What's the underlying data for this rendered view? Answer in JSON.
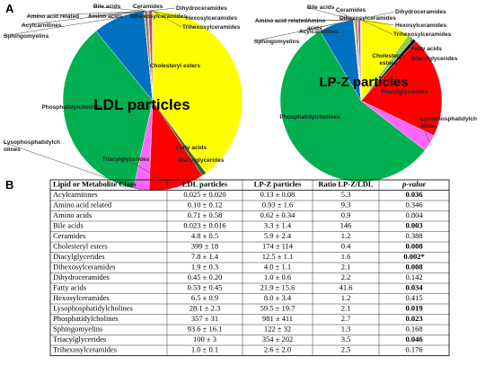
{
  "panels": [
    "A",
    "B"
  ],
  "chart_data": [
    {
      "type": "pie",
      "title": "LDL particles",
      "categories": [
        "Cholesteryl esters",
        "Fatty acids",
        "Diacylglycerides",
        "Triacylglycerides",
        "Lysophosphatidylch olines",
        "Phosphatidylcholines",
        "Sphingomyelins",
        "Acylcarnitines",
        "Amino acid related",
        "Amino acids",
        "Bile acids",
        "Ceramides",
        "Dihexosylceramides",
        "Dihydroceramides",
        "Hexosylceramides",
        "Trihexosylceramides"
      ],
      "values": [
        399,
        0.53,
        7.8,
        100,
        28.1,
        357,
        93.6,
        0.025,
        0.1,
        0.71,
        0.023,
        4.8,
        1.9,
        0.45,
        6.5,
        1.0
      ],
      "colors": [
        "#ffff00",
        "#92d050",
        "#4f6228",
        "#ff0000",
        "#ff66ff",
        "#00b050",
        "#0070c0",
        "#7030a0",
        "#ff9900",
        "#c00000",
        "#ffc000",
        "#996633",
        "#808080",
        "#00b0f0",
        "#c0504d",
        "#cc99ff"
      ]
    },
    {
      "type": "pie",
      "title": "LP-Z particles",
      "categories": [
        "Cholesteryl esters",
        "Fatty acids",
        "Diacylglycerides",
        "Triacylglycerides",
        "Lysophosphatidylch olines",
        "Phosphatidylcholines",
        "Sphingomyelins",
        "Acylcarnitines",
        "Amino acid related",
        "Amino acids",
        "Bile acids",
        "Ceramides",
        "Dihexosylceramides",
        "Dihydroceramides",
        "Hexosylceramides",
        "Trihexosylceramides"
      ],
      "values": [
        174,
        21.9,
        12.5,
        354,
        59.5,
        981,
        122,
        0.13,
        0.93,
        0.62,
        3.3,
        5.9,
        4.0,
        1.0,
        8.0,
        2.6
      ],
      "colors": [
        "#ffff00",
        "#92d050",
        "#000000",
        "#ff0000",
        "#ff66ff",
        "#00b050",
        "#0070c0",
        "#7030a0",
        "#ff9900",
        "#c00000",
        "#ffc000",
        "#996633",
        "#808080",
        "#00b0f0",
        "#c0504d",
        "#cc99ff"
      ]
    }
  ],
  "table": {
    "header": [
      "Lipid or Metabolite Class",
      "LDL particles",
      "LP-Z particles",
      "Ratio LP-Z/LDL",
      "p-value"
    ],
    "rows": [
      [
        "Acylcarnitines",
        "0.025 ± 0.020",
        "0.13 ± 0.08",
        "5.3",
        "0.036"
      ],
      [
        "Amino acid related",
        "0.10 ± 0.12",
        "0.93 ± 1.6",
        "9.3",
        "0.346"
      ],
      [
        "Amino acids",
        "0.71 ± 0.58",
        "0.62 ± 0.34",
        "0.9",
        "0.804"
      ],
      [
        "Bile acids",
        "0.023 ± 0.016",
        "3.3 ± 1.4",
        "146",
        "0.003"
      ],
      [
        "Ceramides",
        "4.8 ± 0.5",
        "5.9 ± 2.4",
        "1.2",
        "0.388"
      ],
      [
        "Cholesteryl esters",
        "399 ± 18",
        "174 ± 114",
        "0.4",
        "0.008"
      ],
      [
        "Diacylglycerides",
        "7.8 ± 1.4",
        "12.5 ± 1.1",
        "1.6",
        "0.002*"
      ],
      [
        "Dihexosylceramides",
        "1.9 ± 0.3",
        "4.0 ± 1.1",
        "2.1",
        "0.008"
      ],
      [
        "Dihydroceramides",
        "0.45 ± 0.20",
        "1.0 ± 0.6",
        "2.2",
        "0.142"
      ],
      [
        "Fatty acids",
        "0.53 ± 0.45",
        "21.9 ± 15.6",
        "41.6",
        "0.034"
      ],
      [
        "Hexosylceramides",
        "6.5 ± 0.9",
        "8.0 ± 3.4",
        "1.2",
        "0.415"
      ],
      [
        "Lysophosphatidylcholines",
        "28.1 ± 2.3",
        "59.5 ± 19.7",
        "2.1",
        "0.019"
      ],
      [
        "Phosphatidylcholines",
        "357 ± 31",
        "981 ± 411",
        "2.7",
        "0.023"
      ],
      [
        "Sphingomyelins",
        "93.6 ± 16.1",
        "122 ± 32",
        "1.3",
        "0.168"
      ],
      [
        "Triacylglycerides",
        "100 ± 3",
        "354 ± 202",
        "3.5",
        "0.046"
      ],
      [
        "Trihexosylceramides",
        "1.0 ± 0.1",
        "2.6 ± 2.0",
        "2.5",
        "0.176"
      ]
    ]
  }
}
